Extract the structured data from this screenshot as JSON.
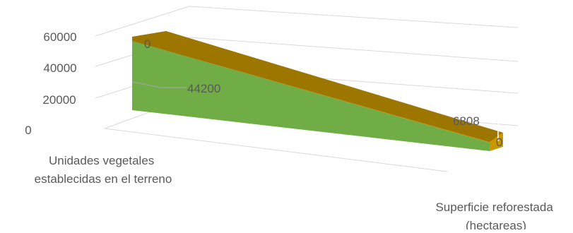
{
  "chart_data": {
    "type": "area",
    "title": "",
    "xlabel": "",
    "ylabel": "",
    "categories": [
      "Unidades vegetales establecidas en el terreno",
      "Superficie reforestada (hectareas)"
    ],
    "y_ticks": [
      "0",
      "20000",
      "40000",
      "60000"
    ],
    "ylim": [
      0,
      60000
    ],
    "grid": true,
    "legend": "none",
    "view": "3d",
    "series": [
      {
        "values": [
          44200,
          6808
        ],
        "data_labels": [
          "44200",
          "6808"
        ],
        "color": "#70AD47"
      },
      {
        "values": [
          0,
          0
        ],
        "data_labels": [
          "0",
          "0"
        ],
        "color": "#BF9000"
      }
    ]
  }
}
